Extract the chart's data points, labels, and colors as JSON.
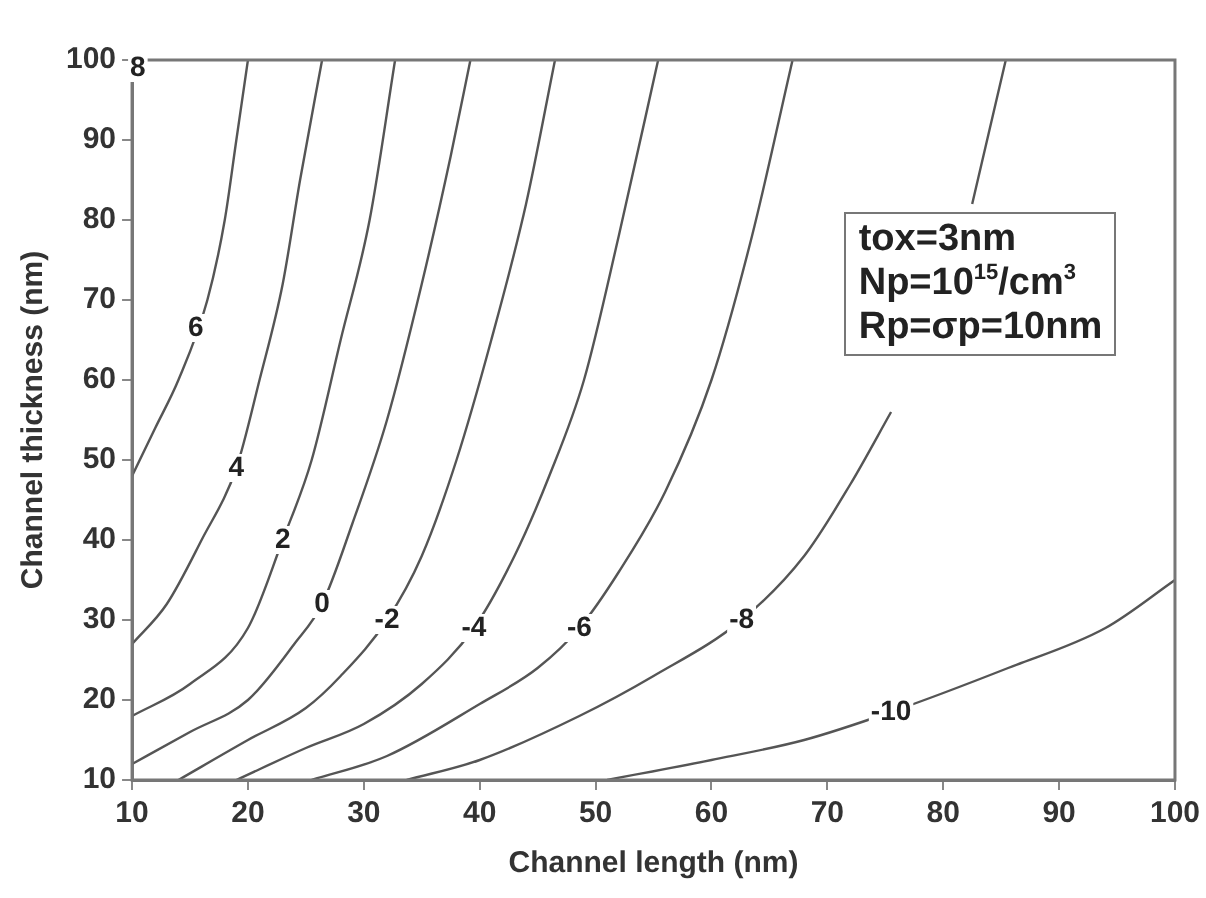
{
  "chart_data": {
    "type": "line",
    "xlabel": "Channel length (nm)",
    "ylabel": "Channel thickness (nm)",
    "xlim": [
      10,
      100
    ],
    "xticks": [
      10,
      20,
      30,
      40,
      50,
      60,
      70,
      80,
      90,
      100
    ],
    "ylim": [
      10,
      100
    ],
    "yticks": [
      10,
      20,
      30,
      40,
      50,
      60,
      70,
      80,
      90,
      100
    ],
    "grid": false,
    "legend": false,
    "marker": "none",
    "line_style": "solid",
    "series": [
      {
        "color": "#555555",
        "x": [
          10,
          12,
          14,
          16.5,
          18,
          19,
          20
        ],
        "values": [
          48,
          54,
          60,
          70,
          80,
          90,
          100
        ]
      },
      {
        "color": "#555555",
        "x": [
          10,
          13,
          16,
          19,
          21,
          23,
          24.5,
          26.4
        ],
        "values": [
          27,
          32,
          40,
          49,
          60,
          72,
          85,
          100
        ]
      },
      {
        "color": "#555555",
        "x": [
          10,
          15,
          20,
          23,
          25.5,
          28,
          30.5,
          32.7
        ],
        "values": [
          18,
          22,
          29,
          40,
          50,
          65,
          80,
          100
        ]
      },
      {
        "color": "#555555",
        "x": [
          10,
          15,
          20,
          24,
          26.4,
          29,
          32,
          35,
          37.5,
          39.2
        ],
        "values": [
          12,
          16,
          20,
          27,
          32,
          42,
          55,
          72,
          88,
          100
        ]
      },
      {
        "color": "#555555",
        "x": [
          14,
          20,
          25,
          28,
          32,
          35,
          38,
          41,
          44,
          46.5
        ],
        "values": [
          10,
          15,
          19,
          23,
          30,
          38,
          50,
          65,
          82,
          100
        ]
      },
      {
        "color": "#555555",
        "x": [
          19,
          25,
          30,
          35,
          39.5,
          43,
          46,
          49,
          52,
          55.4
        ],
        "values": [
          10,
          14,
          17,
          22,
          29,
          38,
          48,
          60,
          78,
          100
        ]
      },
      {
        "color": "#555555",
        "x": [
          25.5,
          32,
          40,
          45,
          48.6,
          52,
          56,
          60,
          63.5,
          67
        ],
        "values": [
          10,
          13,
          19.5,
          24,
          29,
          36,
          46,
          60,
          78,
          100
        ]
      },
      {
        "color": "#555555",
        "x": [
          33.7,
          40,
          48.6,
          55,
          62.6,
          68,
          72,
          75.5,
          78,
          82.5,
          85.4
        ],
        "values": [
          10,
          12.5,
          18,
          23,
          30,
          38,
          47,
          56,
          null,
          82,
          100
        ]
      },
      {
        "color": "#555555",
        "x": [
          51,
          60,
          68,
          75.5,
          85.6,
          94,
          100
        ],
        "values": [
          10,
          12.5,
          15,
          18.5,
          24,
          29,
          35
        ]
      }
    ],
    "annotations": [
      {
        "text": "8",
        "x": 10.5,
        "y": 99
      },
      {
        "text": "6",
        "x": 15.5,
        "y": 66.5
      },
      {
        "text": "4",
        "x": 19,
        "y": 49
      },
      {
        "text": "2",
        "x": 23,
        "y": 40
      },
      {
        "text": "0",
        "x": 26.4,
        "y": 32
      },
      {
        "text": "-2",
        "x": 32,
        "y": 30
      },
      {
        "text": "-4",
        "x": 39.5,
        "y": 29
      },
      {
        "text": "-6",
        "x": 48.6,
        "y": 29
      },
      {
        "text": "-8",
        "x": 62.6,
        "y": 30
      },
      {
        "text": "-10",
        "x": 75.5,
        "y": 18.5
      },
      "tox=3nm",
      "Np=10$^{15}$/cm$^{3}$",
      "Rp=σp=10nm"
    ]
  }
}
